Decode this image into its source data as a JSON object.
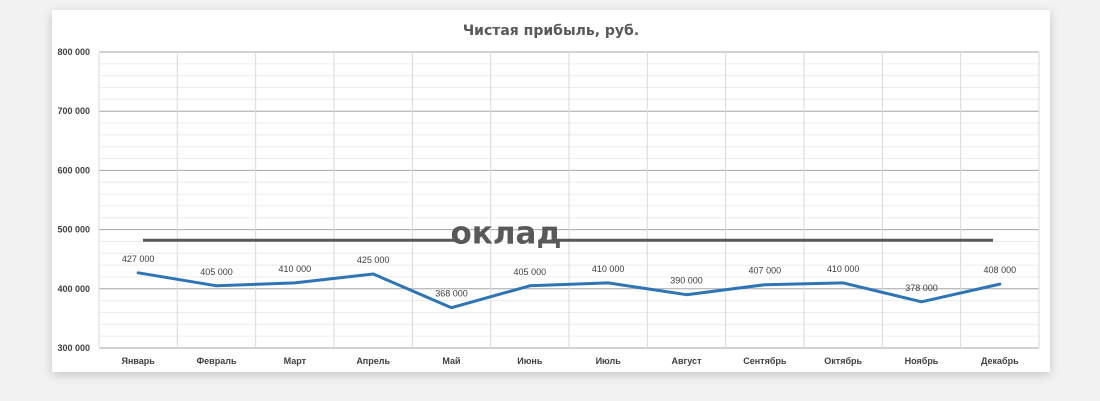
{
  "chart_data": {
    "type": "line",
    "title": "Чистая прибыль, руб.",
    "xlabel": "",
    "ylabel": "",
    "categories": [
      "Январь",
      "Февраль",
      "Март",
      "Апрель",
      "Май",
      "Июнь",
      "Июль",
      "Август",
      "Сентябрь",
      "Октябрь",
      "Ноябрь",
      "Декабрь"
    ],
    "series": [
      {
        "values": [
          427000,
          405000,
          410000,
          425000,
          368000,
          405000,
          410000,
          390000,
          407000,
          410000,
          378000,
          408000
        ],
        "data_labels": [
          "427 000",
          "405 000",
          "410 000",
          "425 000",
          "368 000",
          "405 000",
          "410 000",
          "390 000",
          "407 000",
          "410 000",
          "378 000",
          "408 000"
        ],
        "color": "#2e75b6"
      }
    ],
    "ylim": [
      300000,
      800000
    ],
    "yticks": [
      300000,
      400000,
      500000,
      600000,
      700000,
      800000
    ],
    "ytick_labels": [
      "300 000",
      "400 000",
      "500 000",
      "600 000",
      "700 000",
      "800 000"
    ],
    "grid": true,
    "legend": "none",
    "reference_line": {
      "label": "оклад",
      "value": 482000,
      "color": "#595959"
    }
  }
}
